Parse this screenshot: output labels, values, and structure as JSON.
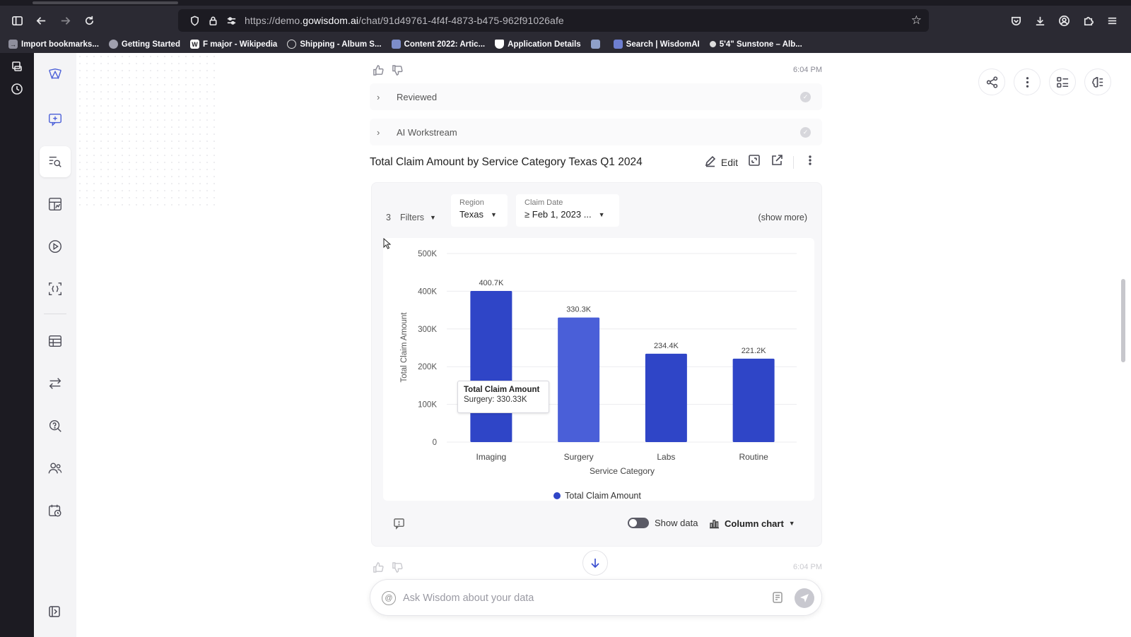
{
  "browser": {
    "url_prefix": "https://demo.",
    "url_host": "gowisdom.ai",
    "url_path": "/chat/91d49761-4f4f-4873-b475-962f91026afe",
    "bookmarks": [
      {
        "label": "Import bookmarks...",
        "icon": "import-icon"
      },
      {
        "label": "Getting Started",
        "icon": "firefox-icon"
      },
      {
        "label": "F major - Wikipedia",
        "icon": "wikipedia-icon"
      },
      {
        "label": "Shipping - Album S...",
        "icon": "globe-icon"
      },
      {
        "label": "Content 2022: Artic...",
        "icon": "site-icon"
      },
      {
        "label": "Application Details",
        "icon": "shield-icon"
      },
      {
        "label": "",
        "icon": "site-icon"
      },
      {
        "label": "Search | WisdomAI",
        "icon": "wisdom-icon"
      },
      {
        "label": "5'4\" Sunstone – Alb...",
        "icon": "site-icon"
      }
    ]
  },
  "message": {
    "time_top": "6:04 PM",
    "time_bottom": "6:04 PM",
    "steps": [
      {
        "label": "Reviewed"
      },
      {
        "label": "AI Workstream"
      }
    ]
  },
  "chart_header": {
    "title": "Total Claim Amount by Service Category Texas Q1 2024",
    "edit_label": "Edit"
  },
  "filters": {
    "count": "3",
    "label": "Filters",
    "region_label": "Region",
    "region_value": "Texas",
    "date_label": "Claim Date",
    "date_value": "≥ Feb 1, 2023 ...",
    "show_more": "(show more)"
  },
  "chart_data": {
    "type": "bar",
    "categories": [
      "Imaging",
      "Surgery",
      "Labs",
      "Routine"
    ],
    "values": [
      400.7,
      330.3,
      234.4,
      221.2
    ],
    "value_labels": [
      "400.7K",
      "330.3K",
      "234.4K",
      "221.2K"
    ],
    "yticks": [
      "0",
      "100K",
      "200K",
      "300K",
      "400K",
      "500K"
    ],
    "ylim": [
      0,
      500
    ],
    "xlabel": "Service Category",
    "ylabel": "Total Claim Amount",
    "legend": "Total Claim Amount",
    "legend_position": "bottom",
    "highlighted": "Surgery",
    "colors": {
      "bar": "#2f45c7",
      "highlight": "#4a5fd8",
      "grid": "#ececef"
    },
    "grid": true
  },
  "tooltip": {
    "title": "Total Claim Amount",
    "value": "Surgery: 330.33K"
  },
  "card_footer": {
    "show_data_label": "Show data",
    "chart_type_label": "Column chart"
  },
  "composer": {
    "placeholder": "Ask Wisdom about your data"
  }
}
